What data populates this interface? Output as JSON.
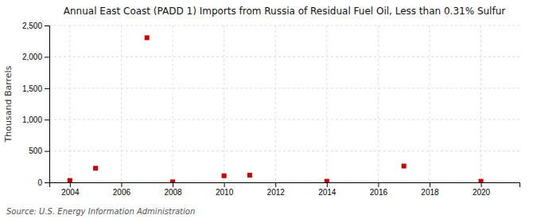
{
  "chart_data": {
    "type": "scatter",
    "title": "Annual East Coast (PADD 1) Imports from Russia of Residual Fuel Oil, Less than 0.31% Sulfur",
    "ylabel": "Thousand Barrels",
    "annotations": [
      "Source: U.S. Energy Information Administration"
    ],
    "x": [
      2004,
      2005,
      2007,
      2008,
      2010,
      2011,
      2014,
      2017,
      2020
    ],
    "values": [
      30,
      225,
      2305,
      8,
      105,
      115,
      18,
      260,
      18
    ],
    "color": "#cc0000",
    "marker": "square",
    "xlim": [
      2003.2,
      2021.5
    ],
    "ylim": [
      0,
      2500
    ],
    "xticks": [
      2004,
      2006,
      2008,
      2010,
      2012,
      2014,
      2016,
      2018,
      2020
    ],
    "yticks": [
      0,
      500,
      {
        "value": 1000,
        "label": "1,000"
      },
      {
        "value": 1500,
        "label": "1,500"
      },
      {
        "value": 2000,
        "label": "2,000"
      },
      {
        "value": 2500,
        "label": "2,500"
      }
    ],
    "grid": true
  }
}
